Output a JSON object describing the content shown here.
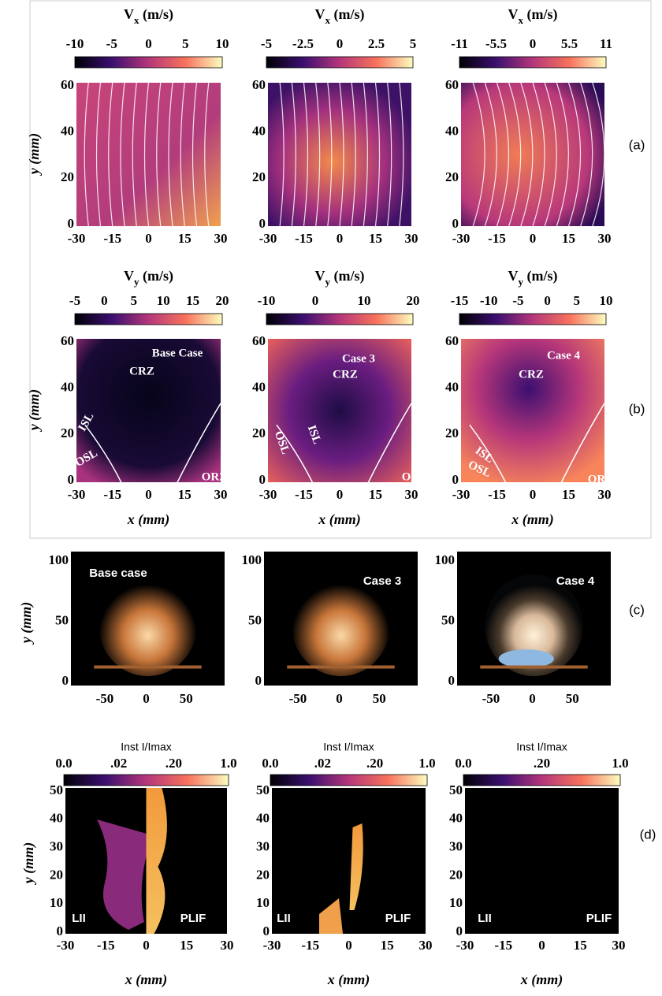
{
  "row_a": {
    "tag": "(a)",
    "y_label": "y (mm)",
    "panels": [
      {
        "colorbar_symbol": "V",
        "colorbar_subscript": "x",
        "colorbar_unit": "(m/s)",
        "colorbar_ticks": [
          "-10",
          "-5",
          "0",
          "5",
          "10"
        ],
        "y_ticks": [
          "60",
          "40",
          "20",
          "0"
        ],
        "x_ticks": [
          "-30",
          "-15",
          "0",
          "15",
          "30"
        ]
      },
      {
        "colorbar_symbol": "V",
        "colorbar_subscript": "x",
        "colorbar_unit": "(m/s)",
        "colorbar_ticks": [
          "-5",
          "-2.5",
          "0",
          "2.5",
          "5"
        ],
        "y_ticks": [
          "60",
          "40",
          "20",
          "0"
        ],
        "x_ticks": [
          "-30",
          "-15",
          "0",
          "15",
          "30"
        ]
      },
      {
        "colorbar_symbol": "V",
        "colorbar_subscript": "x",
        "colorbar_unit": "(m/s)",
        "colorbar_ticks": [
          "-11",
          "-5.5",
          "0",
          "5.5",
          "11"
        ],
        "y_ticks": [
          "60",
          "40",
          "20",
          "0"
        ],
        "x_ticks": [
          "-30",
          "-15",
          "0",
          "15",
          "30"
        ]
      }
    ]
  },
  "row_b": {
    "tag": "(b)",
    "y_label": "y (mm)",
    "panels": [
      {
        "colorbar_symbol": "V",
        "colorbar_subscript": "y",
        "colorbar_unit": "(m/s)",
        "colorbar_ticks": [
          "-5",
          "0",
          "5",
          "10",
          "15",
          "20"
        ],
        "y_ticks": [
          "60",
          "40",
          "20",
          "0"
        ],
        "x_ticks": [
          "-30",
          "-15",
          "0",
          "15",
          "30"
        ],
        "x_label": "x (mm)",
        "annotations": [
          "Base Case",
          "CRZ",
          "ISL",
          "OSL",
          "ORZ"
        ]
      },
      {
        "colorbar_symbol": "V",
        "colorbar_subscript": "y",
        "colorbar_unit": "(m/s)",
        "colorbar_ticks": [
          "-10",
          "0",
          "10",
          "20"
        ],
        "y_ticks": [
          "60",
          "40",
          "20",
          "0"
        ],
        "x_ticks": [
          "-30",
          "-15",
          "0",
          "15",
          "30"
        ],
        "x_label": "x (mm)",
        "annotations": [
          "Case 3",
          "CRZ",
          "OSL",
          "ISL",
          "ORZ"
        ]
      },
      {
        "colorbar_symbol": "V",
        "colorbar_subscript": "y",
        "colorbar_unit": "(m/s)",
        "colorbar_ticks": [
          "-15",
          "-10",
          "-5",
          "0",
          "5",
          "10"
        ],
        "y_ticks": [
          "60",
          "40",
          "20",
          "0"
        ],
        "x_ticks": [
          "-30",
          "-15",
          "0",
          "15",
          "30"
        ],
        "x_label": "x (mm)",
        "annotations": [
          "Case 4",
          "CRZ",
          "ISL",
          "OSL",
          "ORZ"
        ]
      }
    ]
  },
  "row_c": {
    "tag": "(c)",
    "y_label": "y (mm)",
    "panels": [
      {
        "y_ticks": [
          "100",
          "50",
          "0"
        ],
        "x_ticks": [
          "-50",
          "0",
          "50"
        ],
        "annotations": [
          "Base case"
        ]
      },
      {
        "y_ticks": [
          "100",
          "50",
          "0"
        ],
        "x_ticks": [
          "-50",
          "0",
          "50"
        ],
        "annotations": [
          "Case 3"
        ]
      },
      {
        "y_ticks": [
          "100",
          "50",
          "0"
        ],
        "x_ticks": [
          "-50",
          "0",
          "50"
        ],
        "annotations": [
          "Case 4"
        ]
      }
    ]
  },
  "row_d": {
    "tag": "(d)",
    "y_label": "y (mm)",
    "panels": [
      {
        "colorbar_title": "Inst I/Imax",
        "colorbar_ticks": [
          "0.0",
          ".02",
          ".20",
          "1.0"
        ],
        "y_ticks": [
          "50",
          "40",
          "30",
          "20",
          "10",
          "0"
        ],
        "x_ticks": [
          "-30",
          "-15",
          "0",
          "15",
          "30"
        ],
        "x_label": "x (mm)",
        "annotations": [
          "LII",
          "PLIF"
        ]
      },
      {
        "colorbar_title": "Inst I/Imax",
        "colorbar_ticks": [
          "0.0",
          ".02",
          ".20",
          "1.0"
        ],
        "y_ticks": [
          "50",
          "40",
          "30",
          "20",
          "10",
          "0"
        ],
        "x_ticks": [
          "-30",
          "-15",
          "0",
          "15",
          "30"
        ],
        "x_label": "x (mm)",
        "annotations": [
          "LII",
          "PLIF"
        ]
      },
      {
        "colorbar_title": "Inst I/Imax",
        "colorbar_ticks": [
          "0.0",
          ".20",
          "1.0"
        ],
        "y_ticks": [
          "50",
          "40",
          "30",
          "20",
          "10",
          "0"
        ],
        "x_ticks": [
          "-30",
          "-15",
          "0",
          "15",
          "30"
        ],
        "x_label": "x (mm)",
        "annotations": [
          "LII",
          "PLIF"
        ]
      }
    ]
  }
}
